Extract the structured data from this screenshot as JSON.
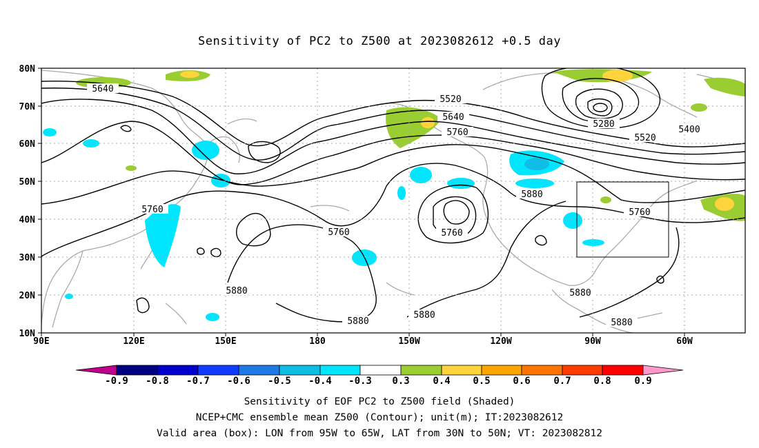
{
  "title": "Sensitivity of PC2 to Z500 at 2023082612 +0.5 day",
  "map": {
    "lon_labels": [
      "90E",
      "120E",
      "150E",
      "180",
      "150W",
      "120W",
      "90W",
      "60W"
    ],
    "lat_labels": [
      "80N",
      "70N",
      "60N",
      "50N",
      "40N",
      "30N",
      "20N",
      "10N"
    ],
    "contour_labels": [
      "5640",
      "5520",
      "5640",
      "5760",
      "5280",
      "5400",
      "5520",
      "5760",
      "5760",
      "5760",
      "5880",
      "5760",
      "5880",
      "5880",
      "5880",
      "5880",
      "5880"
    ],
    "box": {
      "lon_from": "95W",
      "lon_to": "65W",
      "lat_from": "30N",
      "lat_to": "50N"
    }
  },
  "colorbar": {
    "labels": [
      "-0.9",
      "-0.8",
      "-0.7",
      "-0.6",
      "-0.5",
      "-0.4",
      "-0.3",
      "0.3",
      "0.4",
      "0.5",
      "0.6",
      "0.7",
      "0.8",
      "0.9"
    ],
    "colors": [
      "#c0008c",
      "#000080",
      "#0000cd",
      "#0f3cff",
      "#1e78e6",
      "#0ebce6",
      "#00e6ff",
      "#ffffff",
      "#9acd32",
      "#ffd33c",
      "#ffa500",
      "#ff7300",
      "#ff3c00",
      "#ff0000",
      "#ff99cc"
    ]
  },
  "captions": {
    "line1": "Sensitivity of EOF PC2 to Z500 field (Shaded)",
    "line2": "NCEP+CMC ensemble mean Z500 (Contour); unit(m); IT:2023082612",
    "line3": "Valid area (box): LON from 95W to 65W, LAT from 30N to 50N; VT: 2023082812"
  }
}
